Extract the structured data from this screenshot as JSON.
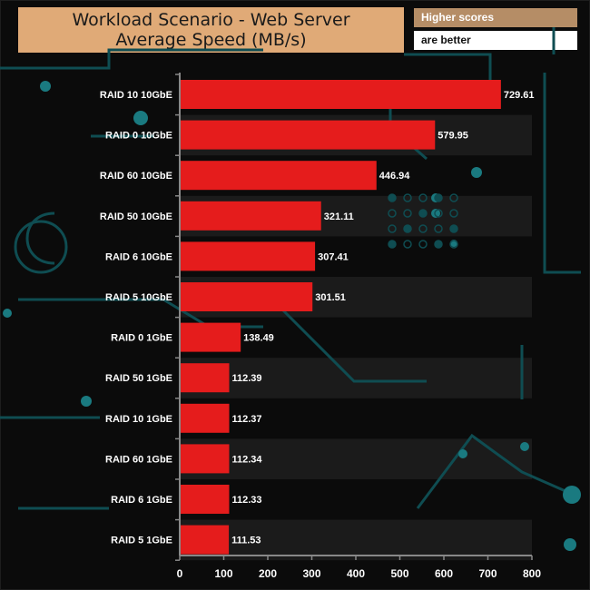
{
  "chart_data": {
    "type": "bar",
    "orientation": "horizontal",
    "title": "Workload Scenario - Web Server",
    "subtitle": "Average Speed (MB/s)",
    "note_line1": "Higher scores",
    "note_line2": "are better",
    "categories": [
      "RAID 10 10GbE",
      "RAID 0 10GbE",
      "RAID 60 10GbE",
      "RAID 50 10GbE",
      "RAID 6 10GbE",
      "RAID 5 10GbE",
      "RAID 0 1GbE",
      "RAID 50 1GbE",
      "RAID 10 1GbE",
      "RAID 60 1GbE",
      "RAID 6 1GbE",
      "RAID 5 1GbE"
    ],
    "values": [
      729.61,
      579.95,
      446.94,
      321.11,
      307.41,
      301.51,
      138.49,
      112.39,
      112.37,
      112.34,
      112.33,
      111.53
    ],
    "value_labels": [
      "729.61",
      "579.95",
      "446.94",
      "321.11",
      "307.41",
      "301.51",
      "138.49",
      "112.39",
      "112.37",
      "112.34",
      "112.33",
      "111.53"
    ],
    "xlim": [
      0,
      800
    ],
    "xticks": [
      0,
      100,
      200,
      300,
      400,
      500,
      600,
      700,
      800
    ],
    "xlabel": "",
    "ylabel": "",
    "bar_color": "#e51c1c",
    "title_bg": "#e0aa77",
    "note_bg": "#b58d66"
  }
}
